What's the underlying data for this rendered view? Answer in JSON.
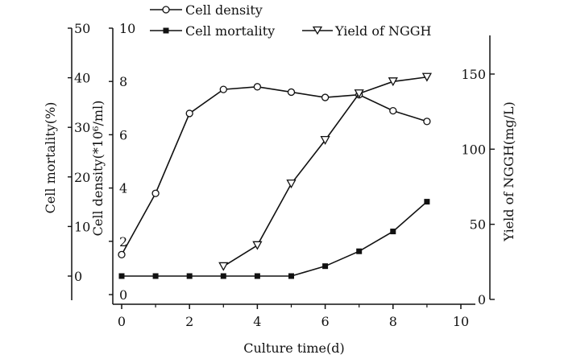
{
  "chart_data": {
    "type": "line",
    "xlabel": "Culture time(d)",
    "x_ticks": [
      "0",
      "2",
      "4",
      "6",
      "8",
      "10"
    ],
    "xlim": [
      0,
      10
    ],
    "grid": false,
    "legend_placement": "top",
    "axes": {
      "mortality": {
        "label": "Cell mortality(%)",
        "ylim": [
          -5,
          50
        ],
        "ticks": [
          "0",
          "10",
          "20",
          "30",
          "40",
          "50"
        ]
      },
      "density": {
        "label": "Cell density(*10⁶/ml)",
        "ylim": [
          0,
          10
        ],
        "ticks": [
          "0",
          "2",
          "4",
          "6",
          "8",
          "10"
        ]
      },
      "yield": {
        "label": "Yield of NGGH(mg/L)",
        "ylim": [
          0,
          175
        ],
        "ticks": [
          "0",
          "50",
          "100",
          "150"
        ]
      }
    },
    "series": [
      {
        "name": "Cell density",
        "axis": "density",
        "marker": "circle-open",
        "x": [
          0,
          1,
          2,
          3,
          4,
          5,
          6,
          7,
          8,
          9
        ],
        "values": [
          1.5,
          3.8,
          6.8,
          7.7,
          7.8,
          7.6,
          7.4,
          7.5,
          6.9,
          6.5
        ]
      },
      {
        "name": "Cell mortality",
        "axis": "mortality",
        "marker": "square-filled",
        "x": [
          0,
          1,
          2,
          3,
          4,
          5,
          6,
          7,
          8,
          9
        ],
        "values": [
          0,
          0,
          0,
          0,
          0,
          0,
          2,
          5,
          9,
          15
        ]
      },
      {
        "name": "Yield of NGGH",
        "axis": "yield",
        "marker": "triangle-down-open",
        "x": [
          3,
          4,
          5,
          6,
          7,
          8,
          9
        ],
        "values": [
          22,
          36,
          77,
          106,
          137,
          145,
          148
        ]
      }
    ]
  }
}
